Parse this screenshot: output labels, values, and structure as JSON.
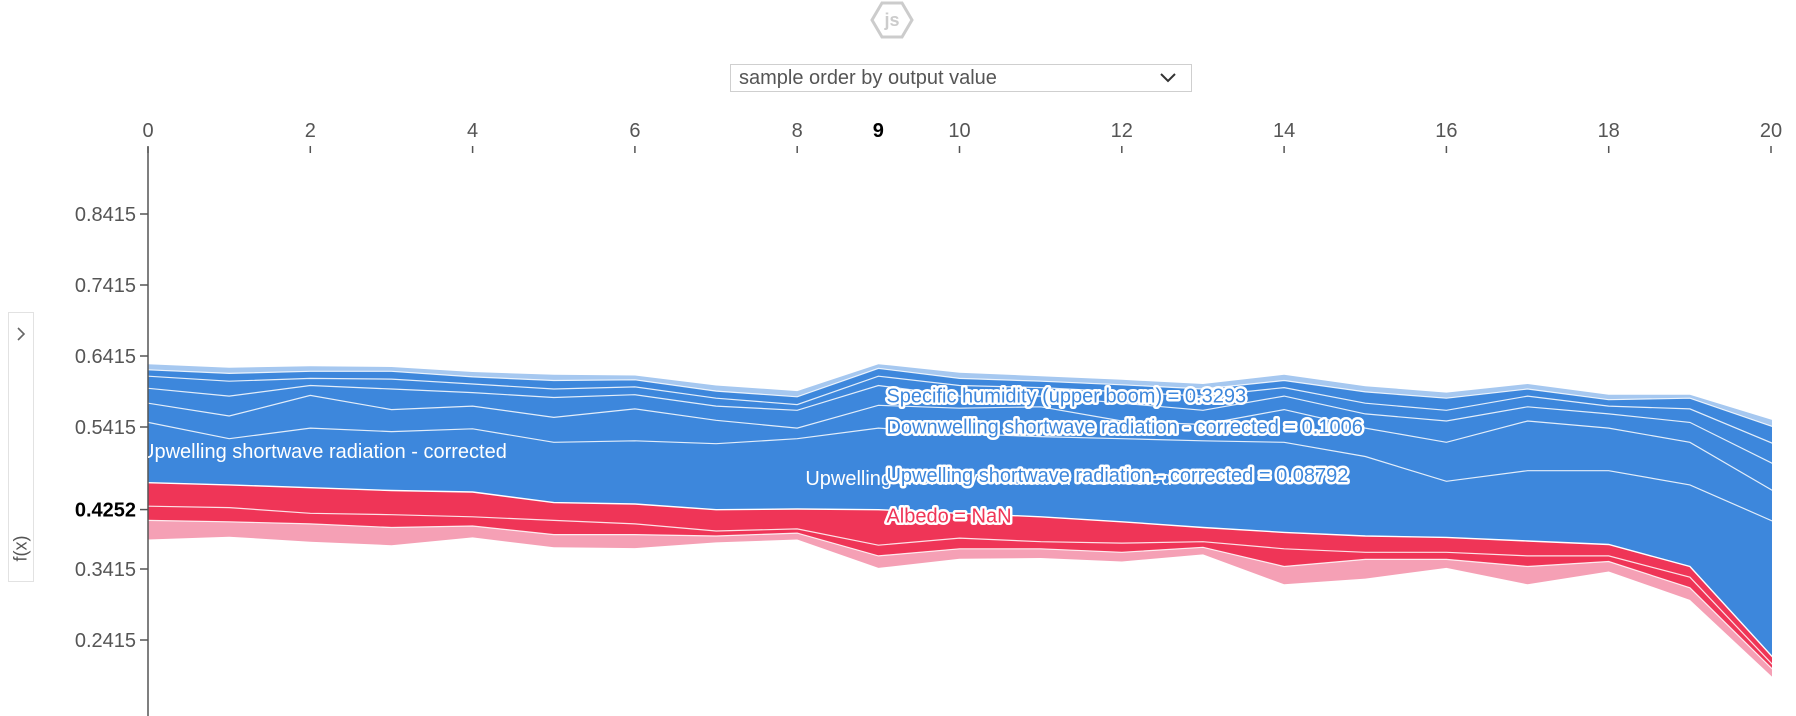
{
  "order_select": {
    "value": "sample order by output value"
  },
  "yaxis_toggle": {
    "label": "f(x)",
    "icon": "chevron-right-icon"
  },
  "logo": {
    "text": "js"
  },
  "colors": {
    "positive": "#ef3557",
    "negative": "#3d87dc",
    "positive_light": "#f5a0b5",
    "negative_light": "#a6c8f0",
    "axis": "#555555",
    "separator": "#ffffff"
  },
  "chart_data": {
    "type": "area",
    "title": "",
    "xlabel": "",
    "ylabel": "f(x)",
    "x_ticks": [
      "0",
      "2",
      "4",
      "6",
      "8",
      "10",
      "12",
      "14",
      "16",
      "18",
      "20"
    ],
    "x_tick_values": [
      0,
      2,
      4,
      6,
      8,
      10,
      12,
      14,
      16,
      18,
      20
    ],
    "highlighted_x": "9",
    "highlighted_x_value": 9,
    "xlim": [
      0,
      20.2
    ],
    "y_ticks": [
      "0.8415",
      "0.7415",
      "0.6415",
      "0.5415",
      "0.4252",
      "0.3415",
      "0.2415"
    ],
    "y_tick_values": [
      0.8415,
      0.7415,
      0.6415,
      0.5415,
      0.4252,
      0.3415,
      0.2415
    ],
    "highlighted_y": "0.4252",
    "ylim": [
      0.14,
      0.93
    ],
    "x": [
      0,
      1,
      2,
      3,
      4,
      5,
      6,
      7,
      8,
      9,
      10,
      11,
      12,
      13,
      14,
      15,
      16,
      17,
      18,
      19,
      20.2
    ],
    "upper_bound": [
      0.63,
      0.625,
      0.627,
      0.626,
      0.619,
      0.615,
      0.614,
      0.6,
      0.592,
      0.63,
      0.618,
      0.613,
      0.608,
      0.602,
      0.615,
      0.599,
      0.59,
      0.602,
      0.587,
      0.587,
      0.545
    ],
    "negative_lines": [
      [
        0.622,
        0.617,
        0.62,
        0.62,
        0.612,
        0.607,
        0.608,
        0.592,
        0.584,
        0.624,
        0.61,
        0.606,
        0.601,
        0.595,
        0.607,
        0.591,
        0.582,
        0.595,
        0.58,
        0.582,
        0.535
      ],
      [
        0.613,
        0.606,
        0.61,
        0.609,
        0.602,
        0.595,
        0.598,
        0.582,
        0.573,
        0.613,
        0.6,
        0.597,
        0.591,
        0.585,
        0.597,
        0.575,
        0.565,
        0.585,
        0.571,
        0.567,
        0.51
      ],
      [
        0.596,
        0.585,
        0.6,
        0.595,
        0.59,
        0.583,
        0.587,
        0.571,
        0.565,
        0.6,
        0.585,
        0.585,
        0.575,
        0.565,
        0.585,
        0.56,
        0.55,
        0.57,
        0.56,
        0.548,
        0.48
      ],
      [
        0.575,
        0.557,
        0.586,
        0.566,
        0.571,
        0.555,
        0.567,
        0.551,
        0.54,
        0.572,
        0.568,
        0.57,
        0.55,
        0.545,
        0.566,
        0.54,
        0.52,
        0.55,
        0.54,
        0.52,
        0.44
      ],
      [
        0.548,
        0.525,
        0.54,
        0.535,
        0.539,
        0.52,
        0.522,
        0.518,
        0.525,
        0.54,
        0.532,
        0.528,
        0.525,
        0.522,
        0.52,
        0.5,
        0.465,
        0.48,
        0.48,
        0.46,
        0.4
      ]
    ],
    "boundary": [
      0.463,
      0.46,
      0.456,
      0.452,
      0.45,
      0.435,
      0.433,
      0.425,
      0.426,
      0.425,
      0.42,
      0.415,
      0.408,
      0.4,
      0.393,
      0.388,
      0.386,
      0.381,
      0.376,
      0.345,
      0.195
    ],
    "positive_lines": [
      [
        0.43,
        0.428,
        0.42,
        0.418,
        0.415,
        0.41,
        0.405,
        0.395,
        0.398,
        0.375,
        0.385,
        0.38,
        0.378,
        0.38,
        0.37,
        0.365,
        0.365,
        0.36,
        0.36,
        0.33,
        0.185
      ],
      [
        0.41,
        0.408,
        0.405,
        0.4,
        0.402,
        0.39,
        0.39,
        0.388,
        0.392,
        0.36,
        0.37,
        0.37,
        0.365,
        0.372,
        0.345,
        0.355,
        0.355,
        0.345,
        0.352,
        0.315,
        0.18
      ]
    ],
    "lower_bound": [
      0.383,
      0.387,
      0.38,
      0.375,
      0.386,
      0.372,
      0.371,
      0.379,
      0.383,
      0.343,
      0.356,
      0.357,
      0.352,
      0.362,
      0.32,
      0.328,
      0.343,
      0.32,
      0.338,
      0.298,
      0.17
    ],
    "series": [
      {
        "name": "Upwelling shortwave radiation - corrected",
        "effect": "negative"
      },
      {
        "name": "Albedo",
        "effect": "positive"
      }
    ],
    "annotations": [
      {
        "text": "Upwelling shortwave radiation - corrected",
        "x": 0,
        "y": 0.498,
        "style": "inside"
      },
      {
        "text": "Upwelling shortwave radiation - corrected",
        "x": 8.1,
        "y": 0.46,
        "style": "inside"
      },
      {
        "text": "Specific humidity (upper boom) = 0.3293",
        "x": 9.1,
        "y": 0.576,
        "style": "hover-negative"
      },
      {
        "text": "Downwelling shortwave radiation - corrected = 0.1006",
        "x": 9.1,
        "y": 0.532,
        "style": "hover-negative"
      },
      {
        "text": "Upwelling shortwave radiation - corrected = 0.08792",
        "x": 9.1,
        "y": 0.464,
        "style": "hover-negative"
      },
      {
        "text": "Albedo = NaN",
        "x": 9.1,
        "y": 0.407,
        "style": "hover-positive"
      }
    ]
  }
}
